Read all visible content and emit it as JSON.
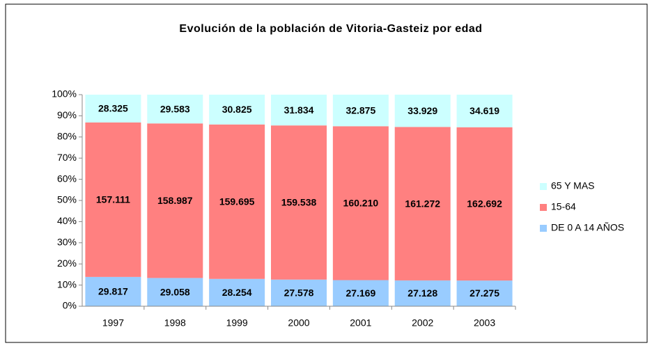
{
  "chart_data": {
    "type": "bar",
    "stacked": "percent",
    "title": "Evolución de la población de Vitoria-Gasteiz por edad",
    "categories": [
      "1997",
      "1998",
      "1999",
      "2000",
      "2001",
      "2002",
      "2003"
    ],
    "series": [
      {
        "name": "DE 0 A 14 AÑOS",
        "color": "#99ccff",
        "values": [
          29.817,
          29.058,
          28.254,
          27.578,
          27.169,
          27.128,
          27.275
        ]
      },
      {
        "name": "15-64",
        "color": "#ff8080",
        "values": [
          157.111,
          158.987,
          159.695,
          159.538,
          160.21,
          161.272,
          162.692
        ],
        "value_labels": [
          "157.111",
          "158.987",
          "159.695",
          "159.538",
          "160.210",
          "161.272",
          "162.692"
        ]
      },
      {
        "name": "65 Y MAS",
        "color": "#ccffff",
        "values": [
          28.325,
          29.583,
          30.825,
          31.834,
          32.875,
          33.929,
          34.619
        ]
      }
    ],
    "ylim": [
      0,
      100
    ],
    "yticks": [
      {
        "value": 0,
        "label": "0%"
      },
      {
        "value": 10,
        "label": "10%"
      },
      {
        "value": 20,
        "label": "20%"
      },
      {
        "value": 30,
        "label": "30%"
      },
      {
        "value": 40,
        "label": "40%"
      },
      {
        "value": 50,
        "label": "50%"
      },
      {
        "value": 60,
        "label": "60%"
      },
      {
        "value": 70,
        "label": "70%"
      },
      {
        "value": 80,
        "label": "80%"
      },
      {
        "value": 90,
        "label": "90%"
      },
      {
        "value": 100,
        "label": "100%"
      }
    ],
    "legend": "right",
    "grid": false
  }
}
